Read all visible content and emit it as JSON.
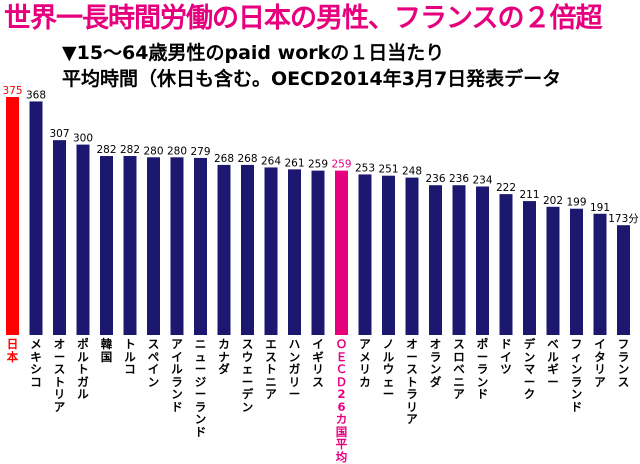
{
  "title": "世界一長時間労働の日本の男性、フランスの２倍超",
  "subtitle": {
    "line1": "▼15～64歳男性のpaid workの１日当たり",
    "line2": "平均時間（休日も含む。OECD2014年3月7日発表データ"
  },
  "chart_data": {
    "type": "bar",
    "categories": [
      "日本",
      "メキシコ",
      "オーストリア",
      "ポルトガル",
      "韓国",
      "トルコ",
      "スペイン",
      "アイルランド",
      "ニュージーランド",
      "カナダ",
      "スウェーデン",
      "エストニア",
      "ハンガリー",
      "イギリス",
      "ＯＥＣＤ26カ国平均",
      "アメリカ",
      "ノルウェー",
      "オーストラリア",
      "オランダ",
      "スロベニア",
      "ポーランド",
      "ドイツ",
      "デンマーク",
      "ベルギー",
      "フィンランド",
      "イタリア",
      "フランス"
    ],
    "values": [
      375,
      368,
      307,
      300,
      282,
      282,
      280,
      280,
      279,
      268,
      268,
      264,
      261,
      259,
      259,
      253,
      251,
      248,
      236,
      236,
      234,
      222,
      211,
      202,
      199,
      191,
      173
    ],
    "value_labels": [
      "375",
      "368",
      "307",
      "300",
      "282",
      "282",
      "280",
      "280",
      "279",
      "268",
      "268",
      "264",
      "261",
      "259",
      "259",
      "253",
      "251",
      "248",
      "236",
      "236",
      "234",
      "222",
      "211",
      "202",
      "199",
      "191",
      "173分"
    ],
    "colors": {
      "default": "#1c1870",
      "japan": "#ff0000",
      "oecd": "#e6007e"
    },
    "highlight": {
      "japan_index": 0,
      "oecd_index": 14
    },
    "ylim": [
      0,
      375
    ],
    "grid": false,
    "legend": "none"
  }
}
